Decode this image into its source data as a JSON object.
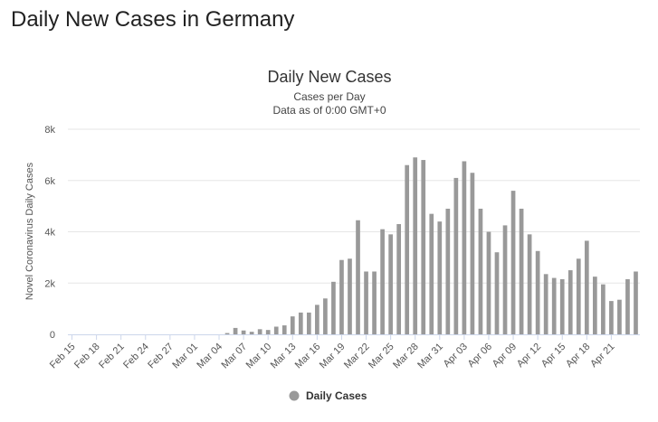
{
  "page": {
    "title": "Daily New Cases in Germany"
  },
  "chart_data": {
    "type": "bar",
    "title": "Daily New Cases",
    "subtitle": "Cases per Day",
    "subtitle2": "Data as of 0:00 GMT+0",
    "ylabel": "Novel Coronavirus Daily Cases",
    "xlabel": "",
    "ylim": [
      0,
      8000
    ],
    "y_ticks": [
      0,
      2000,
      4000,
      6000,
      8000
    ],
    "y_tick_labels": [
      "0",
      "2k",
      "4k",
      "6k",
      "8k"
    ],
    "bar_color": "#999999",
    "grid": true,
    "legend_position": "bottom",
    "series": [
      {
        "name": "Daily Cases",
        "values": [
          0,
          0,
          0,
          0,
          0,
          0,
          0,
          0,
          0,
          0,
          0,
          0,
          0,
          0,
          0,
          0,
          0,
          0,
          0,
          50,
          250,
          150,
          100,
          200,
          170,
          300,
          350,
          700,
          850,
          850,
          1150,
          1400,
          2050,
          2900,
          2950,
          4450,
          2450,
          2450,
          4100,
          3900,
          4300,
          6600,
          6900,
          6800,
          4700,
          4400,
          4900,
          6100,
          6750,
          6300,
          4900,
          4000,
          3200,
          4250,
          5600,
          4900,
          3900,
          3250,
          2350,
          2200,
          2150,
          2500,
          2950,
          3650,
          2250,
          1950,
          1300,
          1350,
          2150,
          2450
        ]
      }
    ],
    "x_tick_labels": [
      "Feb 15",
      "Feb 18",
      "Feb 21",
      "Feb 24",
      "Feb 27",
      "Mar 01",
      "Mar 04",
      "Mar 07",
      "Mar 10",
      "Mar 13",
      "Mar 16",
      "Mar 19",
      "Mar 22",
      "Mar 25",
      "Mar 28",
      "Mar 31",
      "Apr 03",
      "Apr 06",
      "Apr 09",
      "Apr 12",
      "Apr 15",
      "Apr 18",
      "Apr 21"
    ]
  }
}
